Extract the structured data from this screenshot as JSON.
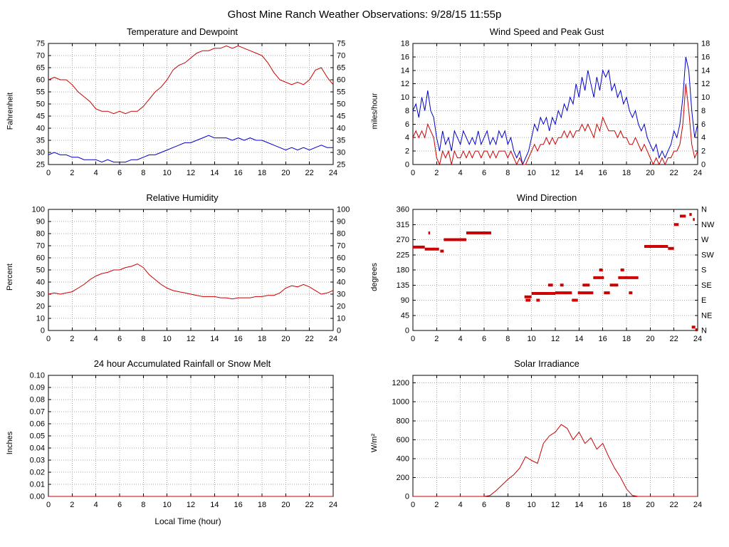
{
  "page": {
    "title": "Ghost Mine Ranch Weather Observations: 9/28/15 11:55p"
  },
  "colors": {
    "red": "#cc0000",
    "blue": "#0000cc",
    "grid": "#aaaaaa",
    "frame": "#000000"
  },
  "chart_data": [
    {
      "type": "line",
      "title": "Temperature and Dewpoint",
      "xlabel": "",
      "ylabel": "Fahrenheit",
      "xlim": [
        0,
        24
      ],
      "ylim": [
        25,
        75
      ],
      "xticks": [
        0,
        2,
        4,
        6,
        8,
        10,
        12,
        14,
        16,
        18,
        20,
        22,
        24
      ],
      "yticks": [
        25,
        30,
        35,
        40,
        45,
        50,
        55,
        60,
        65,
        70,
        75
      ],
      "right_labels": "mirror",
      "grid": true,
      "series": [
        {
          "name": "Temperature",
          "color": "#cc0000",
          "x0": 0,
          "dx": 0.5,
          "y": [
            60,
            61,
            60,
            60,
            58,
            55,
            53,
            51,
            48,
            47,
            47,
            46,
            47,
            46,
            47,
            47,
            49,
            52,
            55,
            57,
            60,
            64,
            66,
            67,
            69,
            71,
            72,
            72,
            73,
            73,
            74,
            73,
            74,
            73,
            72,
            71,
            70,
            67,
            63,
            60,
            59,
            58,
            59,
            58,
            60,
            64,
            65,
            61,
            58
          ]
        },
        {
          "name": "Dewpoint",
          "color": "#0000cc",
          "x0": 0,
          "dx": 0.5,
          "y": [
            29,
            30,
            29,
            29,
            28,
            28,
            27,
            27,
            27,
            26,
            27,
            26,
            26,
            26,
            27,
            27,
            28,
            29,
            29,
            30,
            31,
            32,
            33,
            34,
            34,
            35,
            36,
            37,
            36,
            36,
            36,
            35,
            36,
            35,
            36,
            35,
            35,
            34,
            33,
            32,
            31,
            32,
            31,
            32,
            31,
            32,
            33,
            32,
            32
          ]
        }
      ]
    },
    {
      "type": "line",
      "title": "Wind Speed and Peak Gust",
      "xlabel": "",
      "ylabel": "miles/hour",
      "xlim": [
        0,
        24
      ],
      "ylim": [
        0,
        18
      ],
      "xticks": [
        0,
        2,
        4,
        6,
        8,
        10,
        12,
        14,
        16,
        18,
        20,
        22,
        24
      ],
      "yticks": [
        0,
        2,
        4,
        6,
        8,
        10,
        12,
        14,
        16,
        18
      ],
      "right_labels": "mirror",
      "grid": true,
      "series": [
        {
          "name": "Peak Gust",
          "color": "#0000cc",
          "x0": 0,
          "dx": 0.25,
          "y": [
            8,
            9,
            7,
            10,
            8,
            11,
            8,
            7,
            4,
            2,
            5,
            3,
            4,
            2,
            5,
            4,
            3,
            5,
            4,
            3,
            4,
            3,
            5,
            3,
            4,
            5,
            3,
            4,
            3,
            5,
            4,
            5,
            3,
            4,
            2,
            1,
            2,
            0,
            1,
            2,
            4,
            6,
            5,
            7,
            6,
            7,
            5,
            7,
            6,
            8,
            7,
            9,
            8,
            10,
            9,
            12,
            10,
            13,
            11,
            14,
            12,
            10,
            13,
            11,
            14,
            13,
            14,
            11,
            12,
            10,
            11,
            9,
            10,
            8,
            7,
            8,
            6,
            5,
            6,
            4,
            3,
            2,
            3,
            1,
            2,
            1,
            2,
            3,
            5,
            4,
            6,
            10,
            16,
            14,
            8,
            4,
            6
          ]
        },
        {
          "name": "Wind Speed",
          "color": "#cc0000",
          "x0": 0,
          "dx": 0.25,
          "y": [
            4,
            5,
            4,
            5,
            4,
            6,
            5,
            4,
            1,
            0,
            2,
            1,
            2,
            0,
            2,
            1,
            1,
            2,
            1,
            2,
            1,
            2,
            2,
            1,
            2,
            2,
            1,
            2,
            1,
            2,
            2,
            2,
            1,
            2,
            1,
            0,
            1,
            0,
            0,
            1,
            2,
            3,
            2,
            3,
            3,
            4,
            3,
            4,
            3,
            4,
            4,
            5,
            4,
            5,
            4,
            5,
            5,
            6,
            5,
            6,
            5,
            4,
            6,
            5,
            7,
            6,
            5,
            5,
            5,
            4,
            5,
            4,
            4,
            3,
            3,
            4,
            3,
            2,
            3,
            2,
            1,
            0,
            1,
            0,
            1,
            0,
            1,
            1,
            2,
            2,
            3,
            6,
            12,
            8,
            3,
            1,
            2
          ]
        }
      ]
    },
    {
      "type": "line",
      "title": "Relative Humidity",
      "xlabel": "",
      "ylabel": "Percent",
      "xlim": [
        0,
        24
      ],
      "ylim": [
        0,
        100
      ],
      "xticks": [
        0,
        2,
        4,
        6,
        8,
        10,
        12,
        14,
        16,
        18,
        20,
        22,
        24
      ],
      "yticks": [
        0,
        10,
        20,
        30,
        40,
        50,
        60,
        70,
        80,
        90,
        100
      ],
      "right_labels": "mirror",
      "grid": true,
      "series": [
        {
          "name": "Relative Humidity",
          "color": "#cc0000",
          "x0": 0,
          "dx": 0.5,
          "y": [
            30,
            31,
            30,
            31,
            32,
            35,
            38,
            42,
            45,
            47,
            48,
            50,
            50,
            52,
            53,
            55,
            52,
            46,
            42,
            38,
            35,
            33,
            32,
            31,
            30,
            29,
            28,
            28,
            28,
            27,
            27,
            26,
            27,
            27,
            27,
            28,
            28,
            29,
            29,
            31,
            35,
            37,
            36,
            38,
            36,
            33,
            30,
            31,
            33
          ]
        }
      ]
    },
    {
      "type": "scatter",
      "title": "Wind Direction",
      "xlabel": "",
      "ylabel": "degrees",
      "xlim": [
        0,
        24
      ],
      "ylim": [
        0,
        360
      ],
      "xticks": [
        0,
        2,
        4,
        6,
        8,
        10,
        12,
        14,
        16,
        18,
        20,
        22,
        24
      ],
      "yticks": [
        0,
        45,
        90,
        135,
        180,
        225,
        270,
        315,
        360
      ],
      "right_labels": [
        "N",
        "NE",
        "E",
        "SE",
        "S",
        "SW",
        "W",
        "NW",
        "N"
      ],
      "grid": true,
      "color": "#cc0000",
      "segments": [
        [
          0,
          1.0,
          248
        ],
        [
          1.0,
          2.2,
          242
        ],
        [
          1.3,
          1.45,
          290
        ],
        [
          2.3,
          2.6,
          236
        ],
        [
          2.6,
          4.5,
          270
        ],
        [
          4.5,
          6.6,
          290
        ],
        [
          9.4,
          10.0,
          100
        ],
        [
          9.5,
          9.9,
          90
        ],
        [
          10.0,
          12.0,
          110
        ],
        [
          10.4,
          10.7,
          90
        ],
        [
          11.4,
          11.8,
          135
        ],
        [
          12.0,
          13.4,
          112
        ],
        [
          12.4,
          12.7,
          135
        ],
        [
          13.4,
          13.9,
          90
        ],
        [
          13.9,
          15.2,
          112
        ],
        [
          14.3,
          14.9,
          135
        ],
        [
          15.2,
          16.1,
          157
        ],
        [
          15.7,
          16.0,
          180
        ],
        [
          16.1,
          16.6,
          112
        ],
        [
          16.6,
          17.3,
          135
        ],
        [
          17.3,
          18.0,
          157
        ],
        [
          17.5,
          17.8,
          180
        ],
        [
          18.0,
          18.6,
          157
        ],
        [
          18.2,
          18.5,
          112
        ],
        [
          18.6,
          19.0,
          157
        ],
        [
          19.5,
          21.5,
          250
        ],
        [
          21.5,
          22.0,
          244
        ],
        [
          22.0,
          22.4,
          315
        ],
        [
          22.5,
          23.0,
          340
        ],
        [
          23.3,
          23.5,
          345
        ],
        [
          23.6,
          23.75,
          330
        ],
        [
          23.5,
          23.8,
          10
        ],
        [
          23.8,
          24.0,
          2
        ]
      ]
    },
    {
      "type": "line",
      "title": "24 hour Accumulated Rainfall or Snow Melt",
      "xlabel": "Local Time (hour)",
      "ylabel": "Inches",
      "xlim": [
        0,
        24
      ],
      "ylim": [
        0,
        0.1
      ],
      "xticks": [
        0,
        2,
        4,
        6,
        8,
        10,
        12,
        14,
        16,
        18,
        20,
        22,
        24
      ],
      "yticks": [
        0,
        0.01,
        0.02,
        0.03,
        0.04,
        0.05,
        0.06,
        0.07,
        0.08,
        0.09,
        0.1
      ],
      "ytick_labels": [
        "0.00",
        "0.01",
        "0.02",
        "0.03",
        "0.04",
        "0.05",
        "0.06",
        "0.07",
        "0.08",
        "0.09",
        "0.10"
      ],
      "right_labels": "none",
      "grid": true,
      "series": [
        {
          "name": "Accumulated Rainfall",
          "color": "#cc0000",
          "x0": 0,
          "dx": 24,
          "y": [
            0,
            0
          ]
        }
      ]
    },
    {
      "type": "line",
      "title": "Solar Irradiance",
      "xlabel": "",
      "ylabel": "W/m²",
      "xlim": [
        0,
        24
      ],
      "ylim": [
        0,
        1280
      ],
      "xticks": [
        0,
        2,
        4,
        6,
        8,
        10,
        12,
        14,
        16,
        18,
        20,
        22,
        24
      ],
      "yticks": [
        0,
        200,
        400,
        600,
        800,
        1000,
        1200
      ],
      "right_labels": "none",
      "grid": true,
      "series": [
        {
          "name": "Solar Irradiance",
          "color": "#cc0000",
          "x0": 0,
          "dx": 0.5,
          "y": [
            0,
            0,
            0,
            0,
            0,
            0,
            0,
            0,
            0,
            0,
            0,
            0,
            0,
            10,
            60,
            120,
            180,
            230,
            300,
            420,
            380,
            350,
            560,
            640,
            680,
            760,
            720,
            600,
            680,
            560,
            620,
            500,
            560,
            420,
            300,
            200,
            80,
            10,
            0,
            0,
            0,
            0,
            0,
            0,
            0,
            0,
            0,
            0,
            0
          ]
        }
      ]
    }
  ]
}
